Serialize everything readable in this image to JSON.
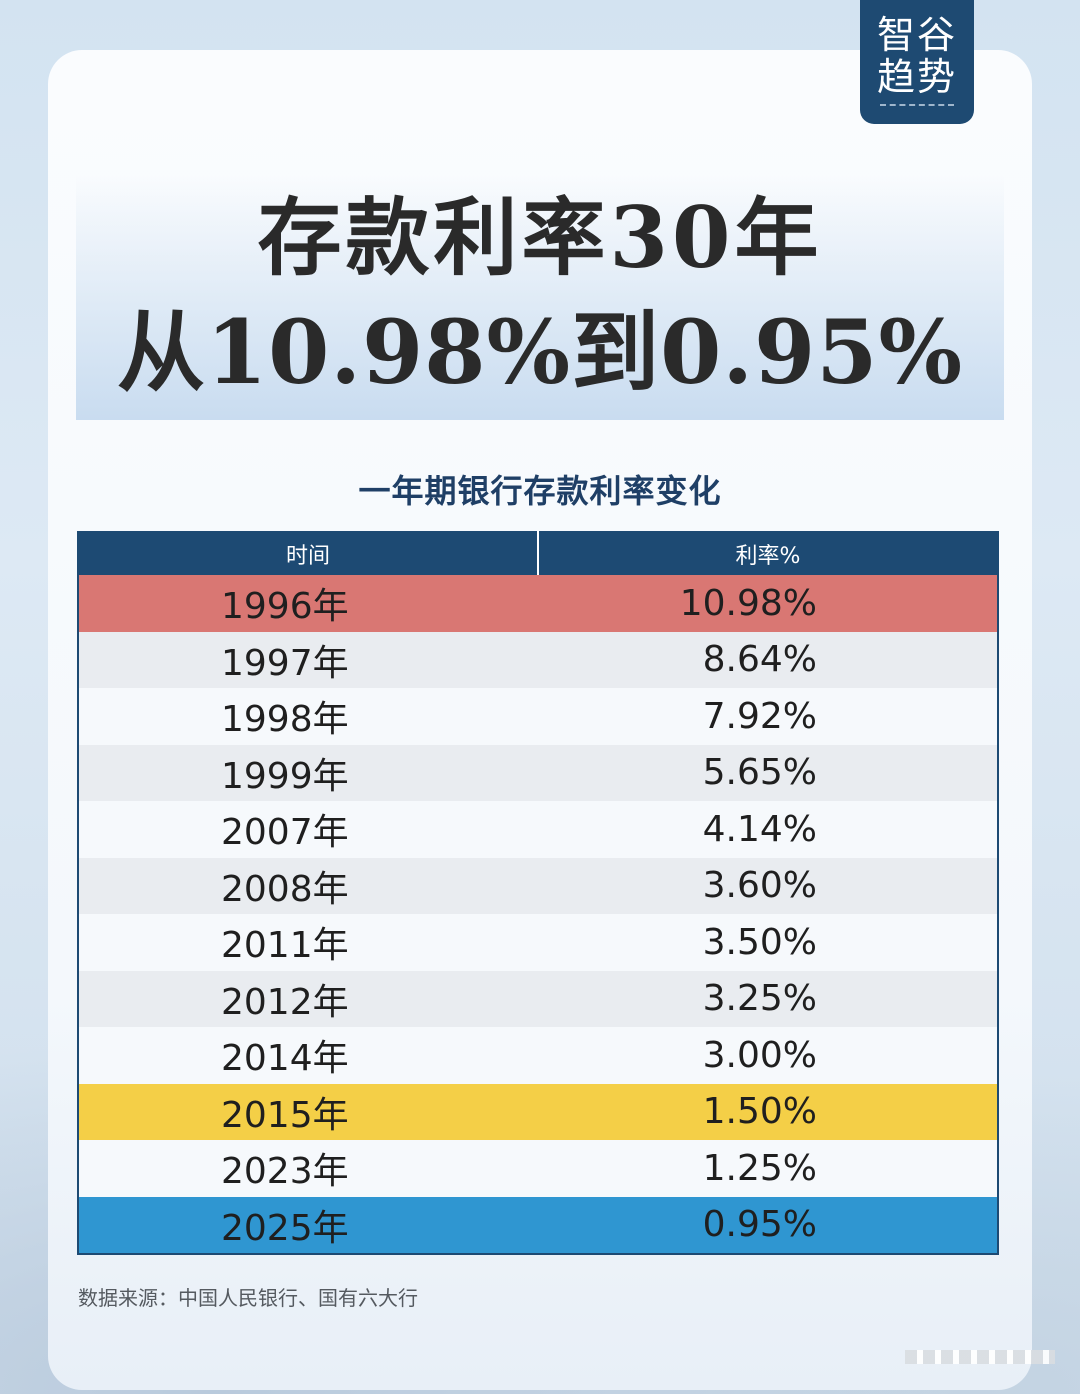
{
  "brand": {
    "line1": "智谷",
    "line2": "趋势"
  },
  "headline": {
    "line1": "存款利率30年",
    "line2": "从10.98%到0.95%"
  },
  "colors": {
    "header": "#1d4a73",
    "highlight_red": "#d97773",
    "highlight_yellow": "#f4cf47",
    "highlight_blue": "#2f96d1",
    "row_light": "#f6f9fc",
    "row_gray": "#e9ecf0"
  },
  "chart_data": {
    "type": "table",
    "title": "一年期银行存款利率变化",
    "columns": [
      "时间",
      "利率%"
    ],
    "rows": [
      {
        "year": "1996年",
        "rate": "10.98%",
        "highlight": "red"
      },
      {
        "year": "1997年",
        "rate": "8.64%"
      },
      {
        "year": "1998年",
        "rate": "7.92%"
      },
      {
        "year": "1999年",
        "rate": "5.65%"
      },
      {
        "year": "2007年",
        "rate": "4.14%"
      },
      {
        "year": "2008年",
        "rate": "3.60%"
      },
      {
        "year": "2011年",
        "rate": "3.50%"
      },
      {
        "year": "2012年",
        "rate": "3.25%"
      },
      {
        "year": "2014年",
        "rate": "3.00%"
      },
      {
        "year": "2015年",
        "rate": "1.50%",
        "highlight": "yellow"
      },
      {
        "year": "2023年",
        "rate": "1.25%"
      },
      {
        "year": "2025年",
        "rate": "0.95%",
        "highlight": "blue"
      }
    ]
  },
  "footnote": "数据来源：中国人民银行、国有六大行"
}
